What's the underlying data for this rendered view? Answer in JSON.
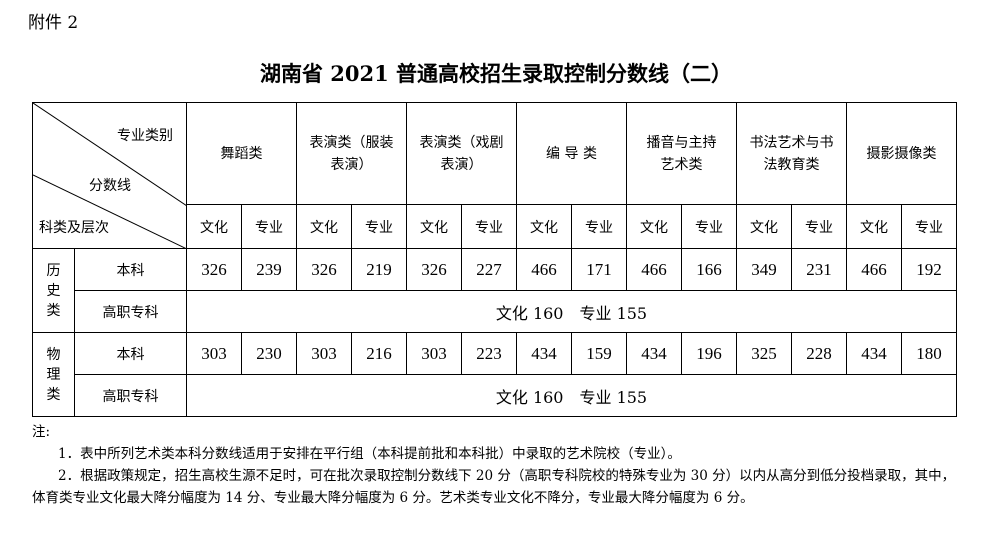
{
  "attachment": "附件 2",
  "title": "湖南省 2021 普通高校招生录取控制分数线（二）",
  "corner": {
    "top": "专业类别",
    "middle": "分数线",
    "bottom": "科类及层次"
  },
  "categories": [
    "舞蹈类",
    "表演类（服装表演）",
    "表演类（戏剧表演）",
    "编 导 类",
    "播音与主持艺术类",
    "书法艺术与书法教育类",
    "摄影摄像类"
  ],
  "sub_headers": {
    "culture": "文化",
    "major": "专业"
  },
  "groups": [
    {
      "name": "历史类",
      "rows": [
        {
          "level": "本科",
          "values": [
            "326",
            "239",
            "326",
            "219",
            "326",
            "227",
            "466",
            "171",
            "466",
            "166",
            "349",
            "231",
            "466",
            "192"
          ]
        },
        {
          "level": "高职专科",
          "merged": "文化 160　专业 155"
        }
      ]
    },
    {
      "name": "物理类",
      "rows": [
        {
          "level": "本科",
          "values": [
            "303",
            "230",
            "303",
            "216",
            "303",
            "223",
            "434",
            "159",
            "434",
            "196",
            "325",
            "228",
            "434",
            "180"
          ]
        },
        {
          "level": "高职专科",
          "merged": "文化 160　专业 155"
        }
      ]
    }
  ],
  "notes": {
    "label": "注:",
    "items": [
      "1．表中所列艺术类本科分数线适用于安排在平行组（本科提前批和本科批）中录取的艺术院校（专业）。",
      "2．根据政策规定，招生高校生源不足时，可在批次录取控制分数线下 20 分（高职专科院校的特殊专业为 30 分）以内从高分到低分投档录取，其中，体育类专业文化最大降分幅度为 14 分、专业最大降分幅度为 6 分。艺术类专业文化不降分，专业最大降分幅度为 6 分。"
    ]
  }
}
